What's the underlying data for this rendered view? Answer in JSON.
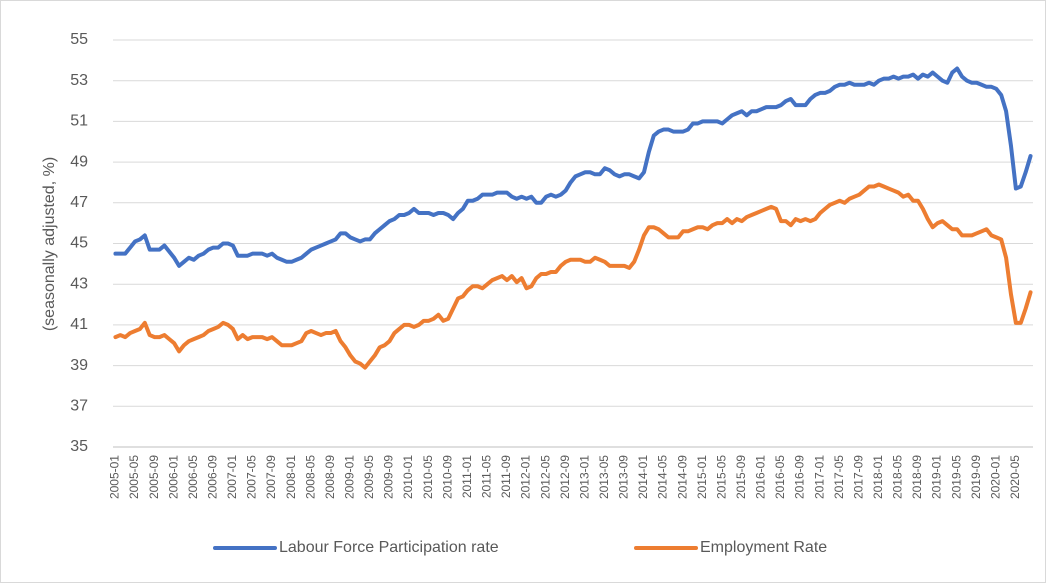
{
  "chart_data": {
    "type": "line",
    "y_label": "(seasonally adjusted, %)",
    "ylim": [
      35,
      55
    ],
    "yticks": [
      35,
      37,
      39,
      41,
      43,
      45,
      47,
      49,
      51,
      53,
      55
    ],
    "grid": true,
    "legend": "bottom",
    "categories": [
      "2005-01",
      null,
      null,
      null,
      "2005-05",
      null,
      null,
      null,
      "2005-09",
      null,
      null,
      null,
      "2006-01",
      null,
      null,
      null,
      "2006-05",
      null,
      null,
      null,
      "2006-09",
      null,
      null,
      null,
      "2007-01",
      null,
      null,
      null,
      "2007-05",
      null,
      null,
      null,
      "2007-09",
      null,
      null,
      null,
      "2008-01",
      null,
      null,
      null,
      "2008-05",
      null,
      null,
      null,
      "2008-09",
      null,
      null,
      null,
      "2009-01",
      null,
      null,
      null,
      "2009-05",
      null,
      null,
      null,
      "2009-09",
      null,
      null,
      null,
      "2010-01",
      null,
      null,
      null,
      "2010-05",
      null,
      null,
      null,
      "2010-09",
      null,
      null,
      null,
      "2011-01",
      null,
      null,
      null,
      "2011-05",
      null,
      null,
      null,
      "2011-09",
      null,
      null,
      null,
      "2012-01",
      null,
      null,
      null,
      "2012-05",
      null,
      null,
      null,
      "2012-09",
      null,
      null,
      null,
      "2013-01",
      null,
      null,
      null,
      "2013-05",
      null,
      null,
      null,
      "2013-09",
      null,
      null,
      null,
      "2014-01",
      null,
      null,
      null,
      "2014-05",
      null,
      null,
      null,
      "2014-09",
      null,
      null,
      null,
      "2015-01",
      null,
      null,
      null,
      "2015-05",
      null,
      null,
      null,
      "2015-09",
      null,
      null,
      null,
      "2016-01",
      null,
      null,
      null,
      "2016-05",
      null,
      null,
      null,
      "2016-09",
      null,
      null,
      null,
      "2017-01",
      null,
      null,
      null,
      "2017-05",
      null,
      null,
      null,
      "2017-09",
      null,
      null,
      null,
      "2018-01",
      null,
      null,
      null,
      "2018-05",
      null,
      null,
      null,
      "2018-09",
      null,
      null,
      null,
      "2019-01",
      null,
      null,
      null,
      "2019-05",
      null,
      null,
      null,
      "2019-09",
      null,
      null,
      null,
      "2020-01",
      null,
      null,
      null,
      "2020-05",
      null,
      null,
      null
    ],
    "series": [
      {
        "name": "Labour Force Participation rate",
        "color": "#4472c4",
        "values": [
          44.5,
          44.5,
          44.5,
          44.8,
          45.1,
          45.2,
          45.4,
          44.7,
          44.7,
          44.7,
          44.9,
          44.6,
          44.3,
          43.9,
          44.1,
          44.3,
          44.2,
          44.4,
          44.5,
          44.7,
          44.8,
          44.8,
          45.0,
          45.0,
          44.9,
          44.4,
          44.4,
          44.4,
          44.5,
          44.5,
          44.5,
          44.4,
          44.5,
          44.3,
          44.2,
          44.1,
          44.1,
          44.2,
          44.3,
          44.5,
          44.7,
          44.8,
          44.9,
          45.0,
          45.1,
          45.2,
          45.5,
          45.5,
          45.3,
          45.2,
          45.1,
          45.2,
          45.2,
          45.5,
          45.7,
          45.9,
          46.1,
          46.2,
          46.4,
          46.4,
          46.5,
          46.7,
          46.5,
          46.5,
          46.5,
          46.4,
          46.5,
          46.5,
          46.4,
          46.2,
          46.5,
          46.7,
          47.1,
          47.1,
          47.2,
          47.4,
          47.4,
          47.4,
          47.5,
          47.5,
          47.5,
          47.3,
          47.2,
          47.3,
          47.2,
          47.3,
          47.0,
          47.0,
          47.3,
          47.4,
          47.3,
          47.4,
          47.6,
          48.0,
          48.3,
          48.4,
          48.5,
          48.5,
          48.4,
          48.4,
          48.7,
          48.6,
          48.4,
          48.3,
          48.4,
          48.4,
          48.3,
          48.2,
          48.5,
          49.5,
          50.3,
          50.5,
          50.6,
          50.6,
          50.5,
          50.5,
          50.5,
          50.6,
          50.9,
          50.9,
          51.0,
          51.0,
          51.0,
          51.0,
          50.9,
          51.1,
          51.3,
          51.4,
          51.5,
          51.3,
          51.5,
          51.5,
          51.6,
          51.7,
          51.7,
          51.7,
          51.8,
          52.0,
          52.1,
          51.8,
          51.8,
          51.8,
          52.1,
          52.3,
          52.4,
          52.4,
          52.5,
          52.7,
          52.8,
          52.8,
          52.9,
          52.8,
          52.8,
          52.8,
          52.9,
          52.8,
          53.0,
          53.1,
          53.1,
          53.2,
          53.1,
          53.2,
          53.2,
          53.3,
          53.1,
          53.3,
          53.2,
          53.4,
          53.2,
          53.0,
          52.9,
          53.4,
          53.6,
          53.2,
          53.0,
          52.9,
          52.9,
          52.8,
          52.7,
          52.7,
          52.6,
          52.3,
          51.5,
          49.8,
          47.7,
          47.8,
          48.5,
          49.3
        ]
      },
      {
        "name": "Employment Rate",
        "color": "#ed7d31",
        "values": [
          40.4,
          40.5,
          40.4,
          40.6,
          40.7,
          40.8,
          41.1,
          40.5,
          40.4,
          40.4,
          40.5,
          40.3,
          40.1,
          39.7,
          40.0,
          40.2,
          40.3,
          40.4,
          40.5,
          40.7,
          40.8,
          40.9,
          41.1,
          41.0,
          40.8,
          40.3,
          40.5,
          40.3,
          40.4,
          40.4,
          40.4,
          40.3,
          40.4,
          40.2,
          40.0,
          40.0,
          40.0,
          40.1,
          40.2,
          40.6,
          40.7,
          40.6,
          40.5,
          40.6,
          40.6,
          40.7,
          40.2,
          39.9,
          39.5,
          39.2,
          39.1,
          38.9,
          39.2,
          39.5,
          39.9,
          40.0,
          40.2,
          40.6,
          40.8,
          41.0,
          41.0,
          40.9,
          41.0,
          41.2,
          41.2,
          41.3,
          41.5,
          41.2,
          41.3,
          41.8,
          42.3,
          42.4,
          42.7,
          42.9,
          42.9,
          42.8,
          43.0,
          43.2,
          43.3,
          43.4,
          43.2,
          43.4,
          43.1,
          43.3,
          42.8,
          42.9,
          43.3,
          43.5,
          43.5,
          43.6,
          43.6,
          43.9,
          44.1,
          44.2,
          44.2,
          44.2,
          44.1,
          44.1,
          44.3,
          44.2,
          44.1,
          43.9,
          43.9,
          43.9,
          43.9,
          43.8,
          44.1,
          44.7,
          45.4,
          45.8,
          45.8,
          45.7,
          45.5,
          45.3,
          45.3,
          45.3,
          45.6,
          45.6,
          45.7,
          45.8,
          45.8,
          45.7,
          45.9,
          46.0,
          46.0,
          46.2,
          46.0,
          46.2,
          46.1,
          46.3,
          46.4,
          46.5,
          46.6,
          46.7,
          46.8,
          46.7,
          46.1,
          46.1,
          45.9,
          46.2,
          46.1,
          46.2,
          46.1,
          46.2,
          46.5,
          46.7,
          46.9,
          47.0,
          47.1,
          47.0,
          47.2,
          47.3,
          47.4,
          47.6,
          47.8,
          47.8,
          47.9,
          47.8,
          47.7,
          47.6,
          47.5,
          47.3,
          47.4,
          47.1,
          47.1,
          46.7,
          46.2,
          45.8,
          46.0,
          46.1,
          45.9,
          45.7,
          45.7,
          45.4,
          45.4,
          45.4,
          45.5,
          45.6,
          45.7,
          45.4,
          45.3,
          45.2,
          44.3,
          42.5,
          41.1,
          41.1,
          41.8,
          42.6
        ]
      }
    ]
  }
}
